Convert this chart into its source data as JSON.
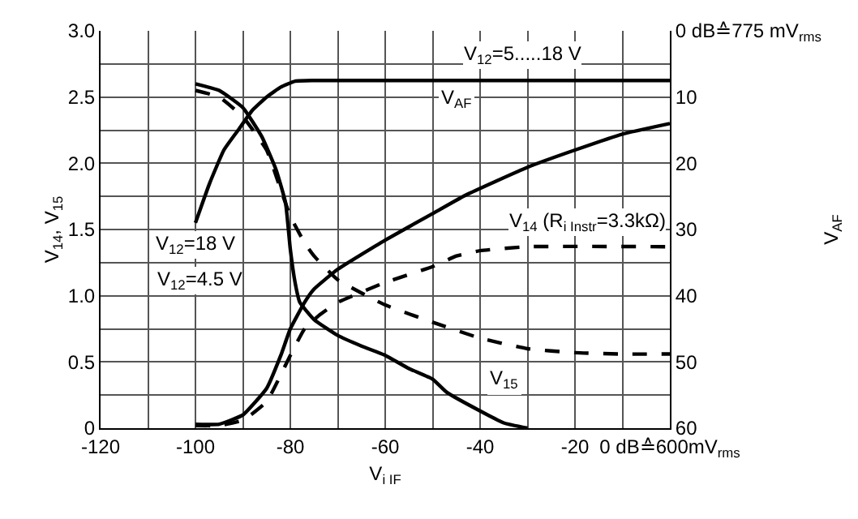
{
  "chart_data": {
    "type": "line",
    "ylabel": "V$_{14}$, V$_{15}$",
    "y2label": "V$_{AF}$",
    "xlabel": "V$_{i IF}$",
    "xlim": [
      -120,
      0
    ],
    "xticks": [
      -120,
      -100,
      -80,
      -60,
      -40,
      -20,
      {
        "value": 0,
        "label": "0 dB≙600mV$_{rms}$"
      }
    ],
    "ylim": [
      0,
      3.0
    ],
    "yticks": [
      {
        "value": 0,
        "label": "0"
      },
      0.5,
      {
        "value": 1,
        "label": "1.0"
      },
      1.5,
      {
        "value": 2,
        "label": "2.0"
      },
      2.5,
      {
        "value": 3,
        "label": "3.0"
      }
    ],
    "y2lim": [
      60,
      0
    ],
    "y2ticks": [
      {
        "value": 0,
        "label": "0 dB≙775 mV$_{rms}$"
      },
      10,
      20,
      30,
      40,
      50,
      60
    ],
    "grid": true,
    "marker": "none",
    "series": [
      {
        "color": "#000000",
        "axis": "y2",
        "line_style": "solid",
        "x": [
          -100,
          -97,
          -94,
          -91,
          -88,
          -85,
          -82,
          -79,
          -75,
          0
        ],
        "values": [
          29,
          23,
          18,
          15,
          12,
          10,
          8.5,
          7.6,
          7.5,
          7.5
        ]
      },
      {
        "color": "#000000",
        "line_style": "solid",
        "x": [
          -100,
          -95,
          -90,
          -85,
          -82,
          -80,
          -77,
          -75,
          -70,
          -60,
          -50,
          -43,
          -30,
          -20,
          -10,
          0
        ],
        "values": [
          0.03,
          0.03,
          0.1,
          0.3,
          0.55,
          0.75,
          0.95,
          1.05,
          1.2,
          1.42,
          1.62,
          1.76,
          1.97,
          2.1,
          2.22,
          2.3
        ]
      },
      {
        "color": "#000000",
        "line_style": "dashed",
        "x": [
          -100,
          -95,
          -90,
          -85,
          -80,
          -77,
          -74,
          -70,
          -60,
          -50,
          -45,
          -40,
          -30,
          0
        ],
        "values": [
          0.02,
          0.02,
          0.06,
          0.2,
          0.55,
          0.75,
          0.85,
          0.95,
          1.1,
          1.22,
          1.3,
          1.34,
          1.37,
          1.37
        ]
      },
      {
        "color": "#000000",
        "line_style": "solid",
        "x": [
          -100,
          -95,
          -90,
          -86,
          -83,
          -81,
          -80,
          -79,
          -78,
          -75,
          -70,
          -65,
          -60,
          -55,
          -50,
          -47,
          -40,
          -35,
          -30
        ],
        "values": [
          2.6,
          2.55,
          2.42,
          2.2,
          1.95,
          1.7,
          1.35,
          1.1,
          0.95,
          0.82,
          0.7,
          0.62,
          0.55,
          0.45,
          0.37,
          0.27,
          0.13,
          0.04,
          0.0
        ]
      },
      {
        "color": "#000000",
        "line_style": "dashed",
        "x": [
          -100,
          -95,
          -90,
          -85,
          -82,
          -80,
          -77,
          -75,
          -70,
          -60,
          -50,
          -40,
          -30,
          -20,
          -10,
          0
        ],
        "values": [
          2.55,
          2.5,
          2.35,
          2.1,
          1.8,
          1.6,
          1.4,
          1.3,
          1.12,
          0.93,
          0.8,
          0.68,
          0.6,
          0.57,
          0.56,
          0.56
        ]
      }
    ],
    "annotations": [
      "V$_{12}$=5.....18 V",
      {
        "text": "V$_{AF}$",
        "x": -45,
        "y": 2.48
      },
      "V$_{14}$ (R$_{i Instr}$=3.3kΩ)",
      {
        "text": "V$_{15}$",
        "x": -35,
        "y": 0.37
      },
      "V$_{12}$=18 V",
      "V$_{12}$=4.5 V"
    ]
  }
}
